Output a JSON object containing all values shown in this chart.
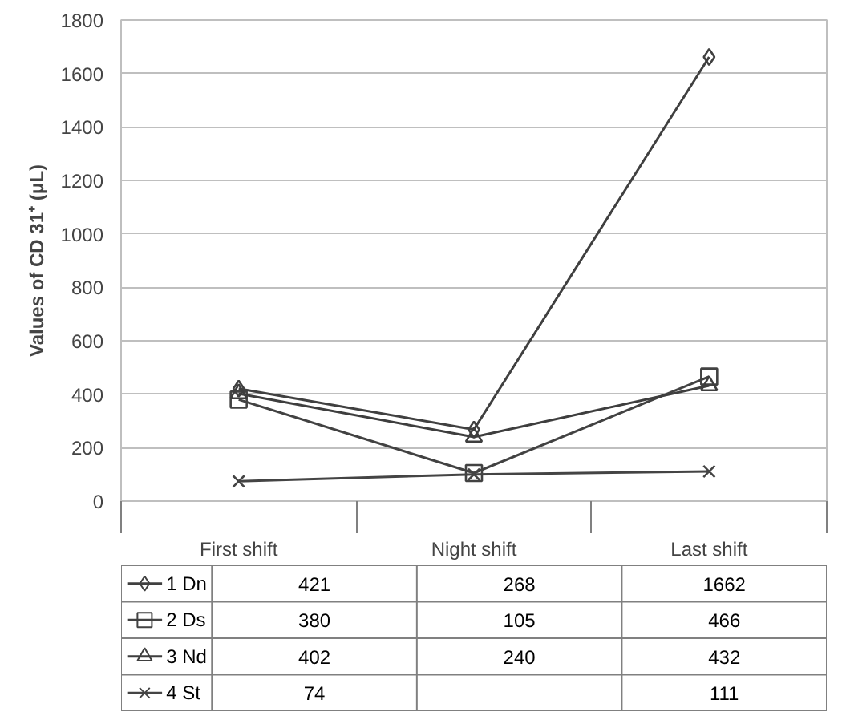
{
  "chart_data": {
    "type": "line",
    "ylabel": "Values of CD 31⁺ (μL)",
    "categories": [
      "First shift",
      "Night shift",
      "Last shift"
    ],
    "ylim": [
      0,
      1800
    ],
    "yticks": [
      0,
      200,
      400,
      600,
      800,
      1000,
      1200,
      1400,
      1600,
      1800
    ],
    "grid": "y",
    "legend": "bottom",
    "line_style": "solid",
    "series": [
      {
        "name": "1 Dn",
        "color": "#404040",
        "marker": "diamond",
        "values": [
          421,
          268,
          1662
        ],
        "value_labels": [
          "421",
          "268",
          "1662"
        ]
      },
      {
        "name": "2 Ds",
        "color": "#424242",
        "marker": "square",
        "values": [
          380,
          105,
          466
        ],
        "value_labels": [
          "380",
          "105",
          "466"
        ]
      },
      {
        "name": "3 Nd",
        "color": "#3e3e3e",
        "marker": "triangle",
        "values": [
          402,
          240,
          432
        ],
        "value_labels": [
          "402",
          "240",
          "432"
        ]
      },
      {
        "name": "4 St",
        "color": "#444444",
        "marker": "cross",
        "values": [
          74,
          100,
          111
        ],
        "value_labels": [
          "74",
          null,
          "111"
        ]
      }
    ]
  }
}
